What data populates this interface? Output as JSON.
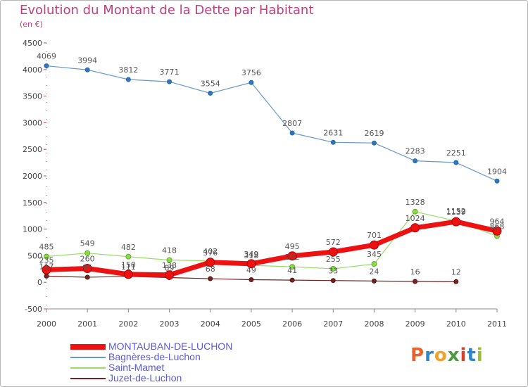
{
  "title": "Evolution du Montant de la Dette par Habitant",
  "subtitle": "(en €)",
  "logo": [
    "P",
    "r",
    "o",
    "x",
    "i",
    "t",
    "i"
  ],
  "logo_colors": [
    "#e9622b",
    "#2f86c9",
    "#f2a12c",
    "#4a9b3c",
    "#d8402b",
    "#2f86c9",
    "#9bbf2d"
  ],
  "chart_data": {
    "type": "line",
    "title": "Evolution du Montant de la Dette par Habitant",
    "ylabel": "(en €)",
    "xlabel": "",
    "x": [
      "2000",
      "2001",
      "2002",
      "2003",
      "2004",
      "2005",
      "2006",
      "2007",
      "2008",
      "2009",
      "2010",
      "2011"
    ],
    "ylim": [
      -500,
      4500
    ],
    "yticks": [
      "-500",
      "0",
      "500",
      "1000",
      "1500",
      "2000",
      "2500",
      "3000",
      "3500",
      "4000",
      "4500"
    ],
    "ytick_values": [
      -500,
      0,
      500,
      1000,
      1500,
      2000,
      2500,
      3000,
      3500,
      4000,
      4500
    ],
    "grid": false,
    "legend_position": "bottom-left",
    "series": [
      {
        "name": "MONTAUBAN-DE-LUCHON",
        "color": "#ee1111",
        "values": [
          235,
          260,
          150,
          138,
          376,
          349,
          495,
          572,
          701,
          1024,
          1139,
          964
        ],
        "labels": [
          "235",
          "260",
          "150",
          "138",
          "376",
          "349",
          "495",
          "572",
          "701",
          "1024",
          "1139",
          "964"
        ]
      },
      {
        "name": "Bagnères-de-Luchon",
        "color": "#6699cc",
        "values": [
          4069,
          3994,
          3812,
          3771,
          3554,
          3756,
          2807,
          2631,
          2619,
          2283,
          2251,
          1904
        ],
        "labels": [
          "4069",
          "3994",
          "3812",
          "3771",
          "3554",
          "3756",
          "2807",
          "2631",
          "2619",
          "2283",
          "2251",
          "1904"
        ]
      },
      {
        "name": "Saint-Mamet",
        "color": "#99dd66",
        "values": [
          485,
          549,
          482,
          418,
          402,
          318,
          292,
          255,
          345,
          1328,
          1152,
          868
        ],
        "labels": [
          "485",
          "549",
          "482",
          "418",
          "402",
          "318",
          "292",
          "255",
          "345",
          "1328",
          "1152",
          "868"
        ]
      },
      {
        "name": "Juzet-de-Luchon",
        "color": "#772222",
        "values": [
          117,
          95,
          111,
          89,
          68,
          49,
          41,
          33,
          24,
          16,
          12,
          null
        ],
        "labels": [
          "117",
          "95",
          "111",
          "89",
          "68",
          "49",
          "41",
          "33",
          "24",
          "16",
          "12",
          ""
        ]
      }
    ]
  }
}
